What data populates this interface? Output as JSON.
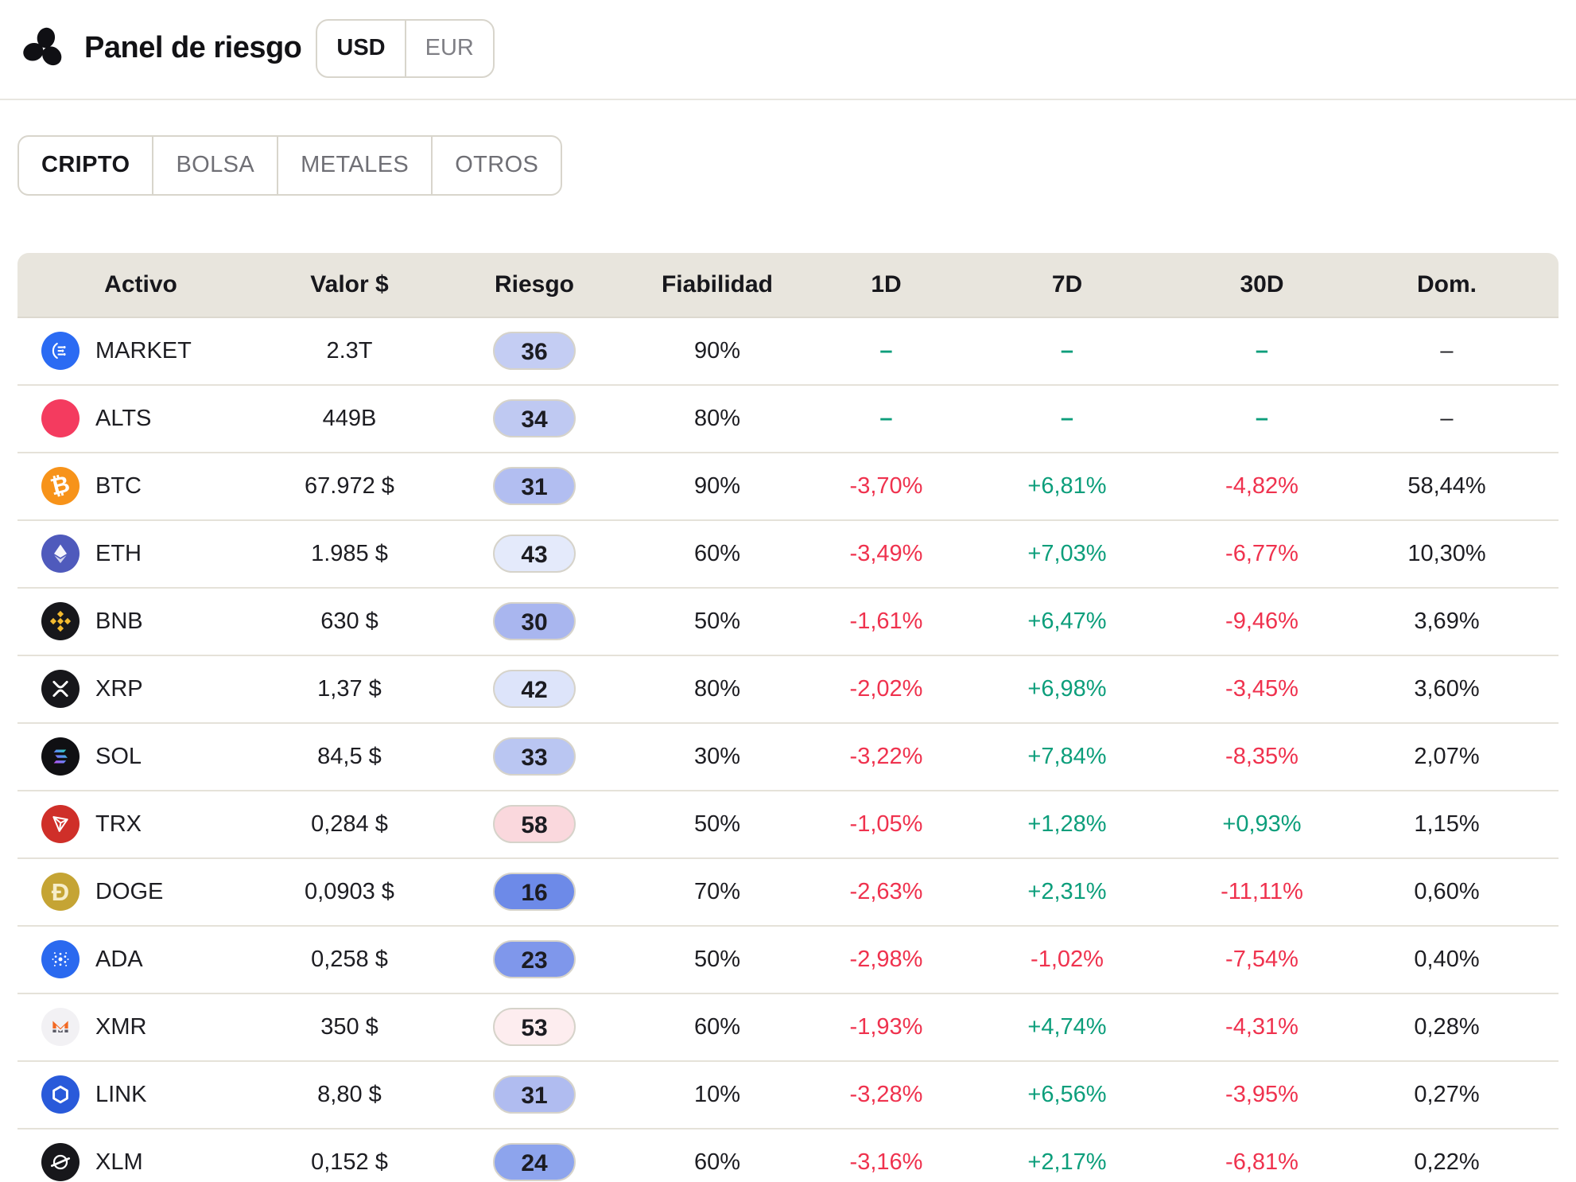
{
  "app": {
    "title": "Panel de riesgo"
  },
  "currency_toggle": {
    "options": [
      {
        "label": "USD",
        "selected": true
      },
      {
        "label": "EUR",
        "selected": false
      }
    ]
  },
  "category_tabs": [
    {
      "label": "CRIPTO",
      "active": true
    },
    {
      "label": "BOLSA",
      "active": false
    },
    {
      "label": "METALES",
      "active": false
    },
    {
      "label": "OTROS",
      "active": false
    }
  ],
  "table": {
    "columns": [
      "Activo",
      "Valor $",
      "Riesgo",
      "Fiabilidad",
      "1D",
      "7D",
      "30D",
      "Dom."
    ],
    "rows": [
      {
        "asset": "MARKET",
        "icon": "market",
        "icon_bg": "#2b6bf3",
        "value": "2.3T",
        "risk": "36",
        "risk_bg": "#c4cdf3",
        "reliability": "90%",
        "d1": "–",
        "d7": "–",
        "d30": "–",
        "dom": "–"
      },
      {
        "asset": "ALTS",
        "icon": "alts",
        "icon_bg": "#f43b5f",
        "value": "449B",
        "risk": "34",
        "risk_bg": "#bfc9f2",
        "reliability": "80%",
        "d1": "–",
        "d7": "–",
        "d30": "–",
        "dom": "–"
      },
      {
        "asset": "BTC",
        "icon": "btc",
        "icon_bg": "#f7931a",
        "value": "67.972 $",
        "risk": "31",
        "risk_bg": "#b2bef1",
        "reliability": "90%",
        "d1": "-3,70%",
        "d7": "+6,81%",
        "d30": "-4,82%",
        "dom": "58,44%"
      },
      {
        "asset": "ETH",
        "icon": "eth",
        "icon_bg": "#4f5abc",
        "value": "1.985 $",
        "risk": "43",
        "risk_bg": "#e4eafb",
        "reliability": "60%",
        "d1": "-3,49%",
        "d7": "+7,03%",
        "d30": "-6,77%",
        "dom": "10,30%"
      },
      {
        "asset": "BNB",
        "icon": "bnb",
        "icon_bg": "#17171b",
        "value": "630 $",
        "risk": "30",
        "risk_bg": "#a9b6ef",
        "reliability": "50%",
        "d1": "-1,61%",
        "d7": "+6,47%",
        "d30": "-9,46%",
        "dom": "3,69%"
      },
      {
        "asset": "XRP",
        "icon": "xrp",
        "icon_bg": "#17171b",
        "value": "1,37 $",
        "risk": "42",
        "risk_bg": "#dde4fa",
        "reliability": "80%",
        "d1": "-2,02%",
        "d7": "+6,98%",
        "d30": "-3,45%",
        "dom": "3,60%"
      },
      {
        "asset": "SOL",
        "icon": "sol",
        "icon_bg": "#101013",
        "value": "84,5 $",
        "risk": "33",
        "risk_bg": "#bac6f2",
        "reliability": "30%",
        "d1": "-3,22%",
        "d7": "+7,84%",
        "d30": "-8,35%",
        "dom": "2,07%"
      },
      {
        "asset": "TRX",
        "icon": "trx",
        "icon_bg": "#cf2f29",
        "value": "0,284 $",
        "risk": "58",
        "risk_bg": "#fad8dd",
        "reliability": "50%",
        "d1": "-1,05%",
        "d7": "+1,28%",
        "d30": "+0,93%",
        "dom": "1,15%"
      },
      {
        "asset": "DOGE",
        "icon": "doge",
        "icon_bg": "#c5a434",
        "value": "0,0903 $",
        "risk": "16",
        "risk_bg": "#6d8ae8",
        "reliability": "70%",
        "d1": "-2,63%",
        "d7": "+2,31%",
        "d30": "-11,11%",
        "dom": "0,60%"
      },
      {
        "asset": "ADA",
        "icon": "ada",
        "icon_bg": "#2a69ef",
        "value": "0,258 $",
        "risk": "23",
        "risk_bg": "#7f97eb",
        "reliability": "50%",
        "d1": "-2,98%",
        "d7": "-1,02%",
        "d30": "-7,54%",
        "dom": "0,40%"
      },
      {
        "asset": "XMR",
        "icon": "xmr",
        "icon_bg": "#f2f1f4",
        "value": "350 $",
        "risk": "53",
        "risk_bg": "#fdedef",
        "reliability": "60%",
        "d1": "-1,93%",
        "d7": "+4,74%",
        "d30": "-4,31%",
        "dom": "0,28%"
      },
      {
        "asset": "LINK",
        "icon": "link",
        "icon_bg": "#295ada",
        "value": "8,80 $",
        "risk": "31",
        "risk_bg": "#b0bcf0",
        "reliability": "10%",
        "d1": "-3,28%",
        "d7": "+6,56%",
        "d30": "-3,95%",
        "dom": "0,27%"
      },
      {
        "asset": "XLM",
        "icon": "xlm",
        "icon_bg": "#17171b",
        "value": "0,152 $",
        "risk": "24",
        "risk_bg": "#8da4ed",
        "reliability": "60%",
        "d1": "-3,16%",
        "d7": "+2,17%",
        "d30": "-6,81%",
        "dom": "0,22%"
      }
    ]
  },
  "colors": {
    "positive": "#0c9e7b",
    "negative": "#ef324e",
    "dash": "#0c9e7b",
    "header_bg": "#e8e5dd",
    "row_divider": "#e5e2d9",
    "control_border": "#d8d5cc"
  }
}
